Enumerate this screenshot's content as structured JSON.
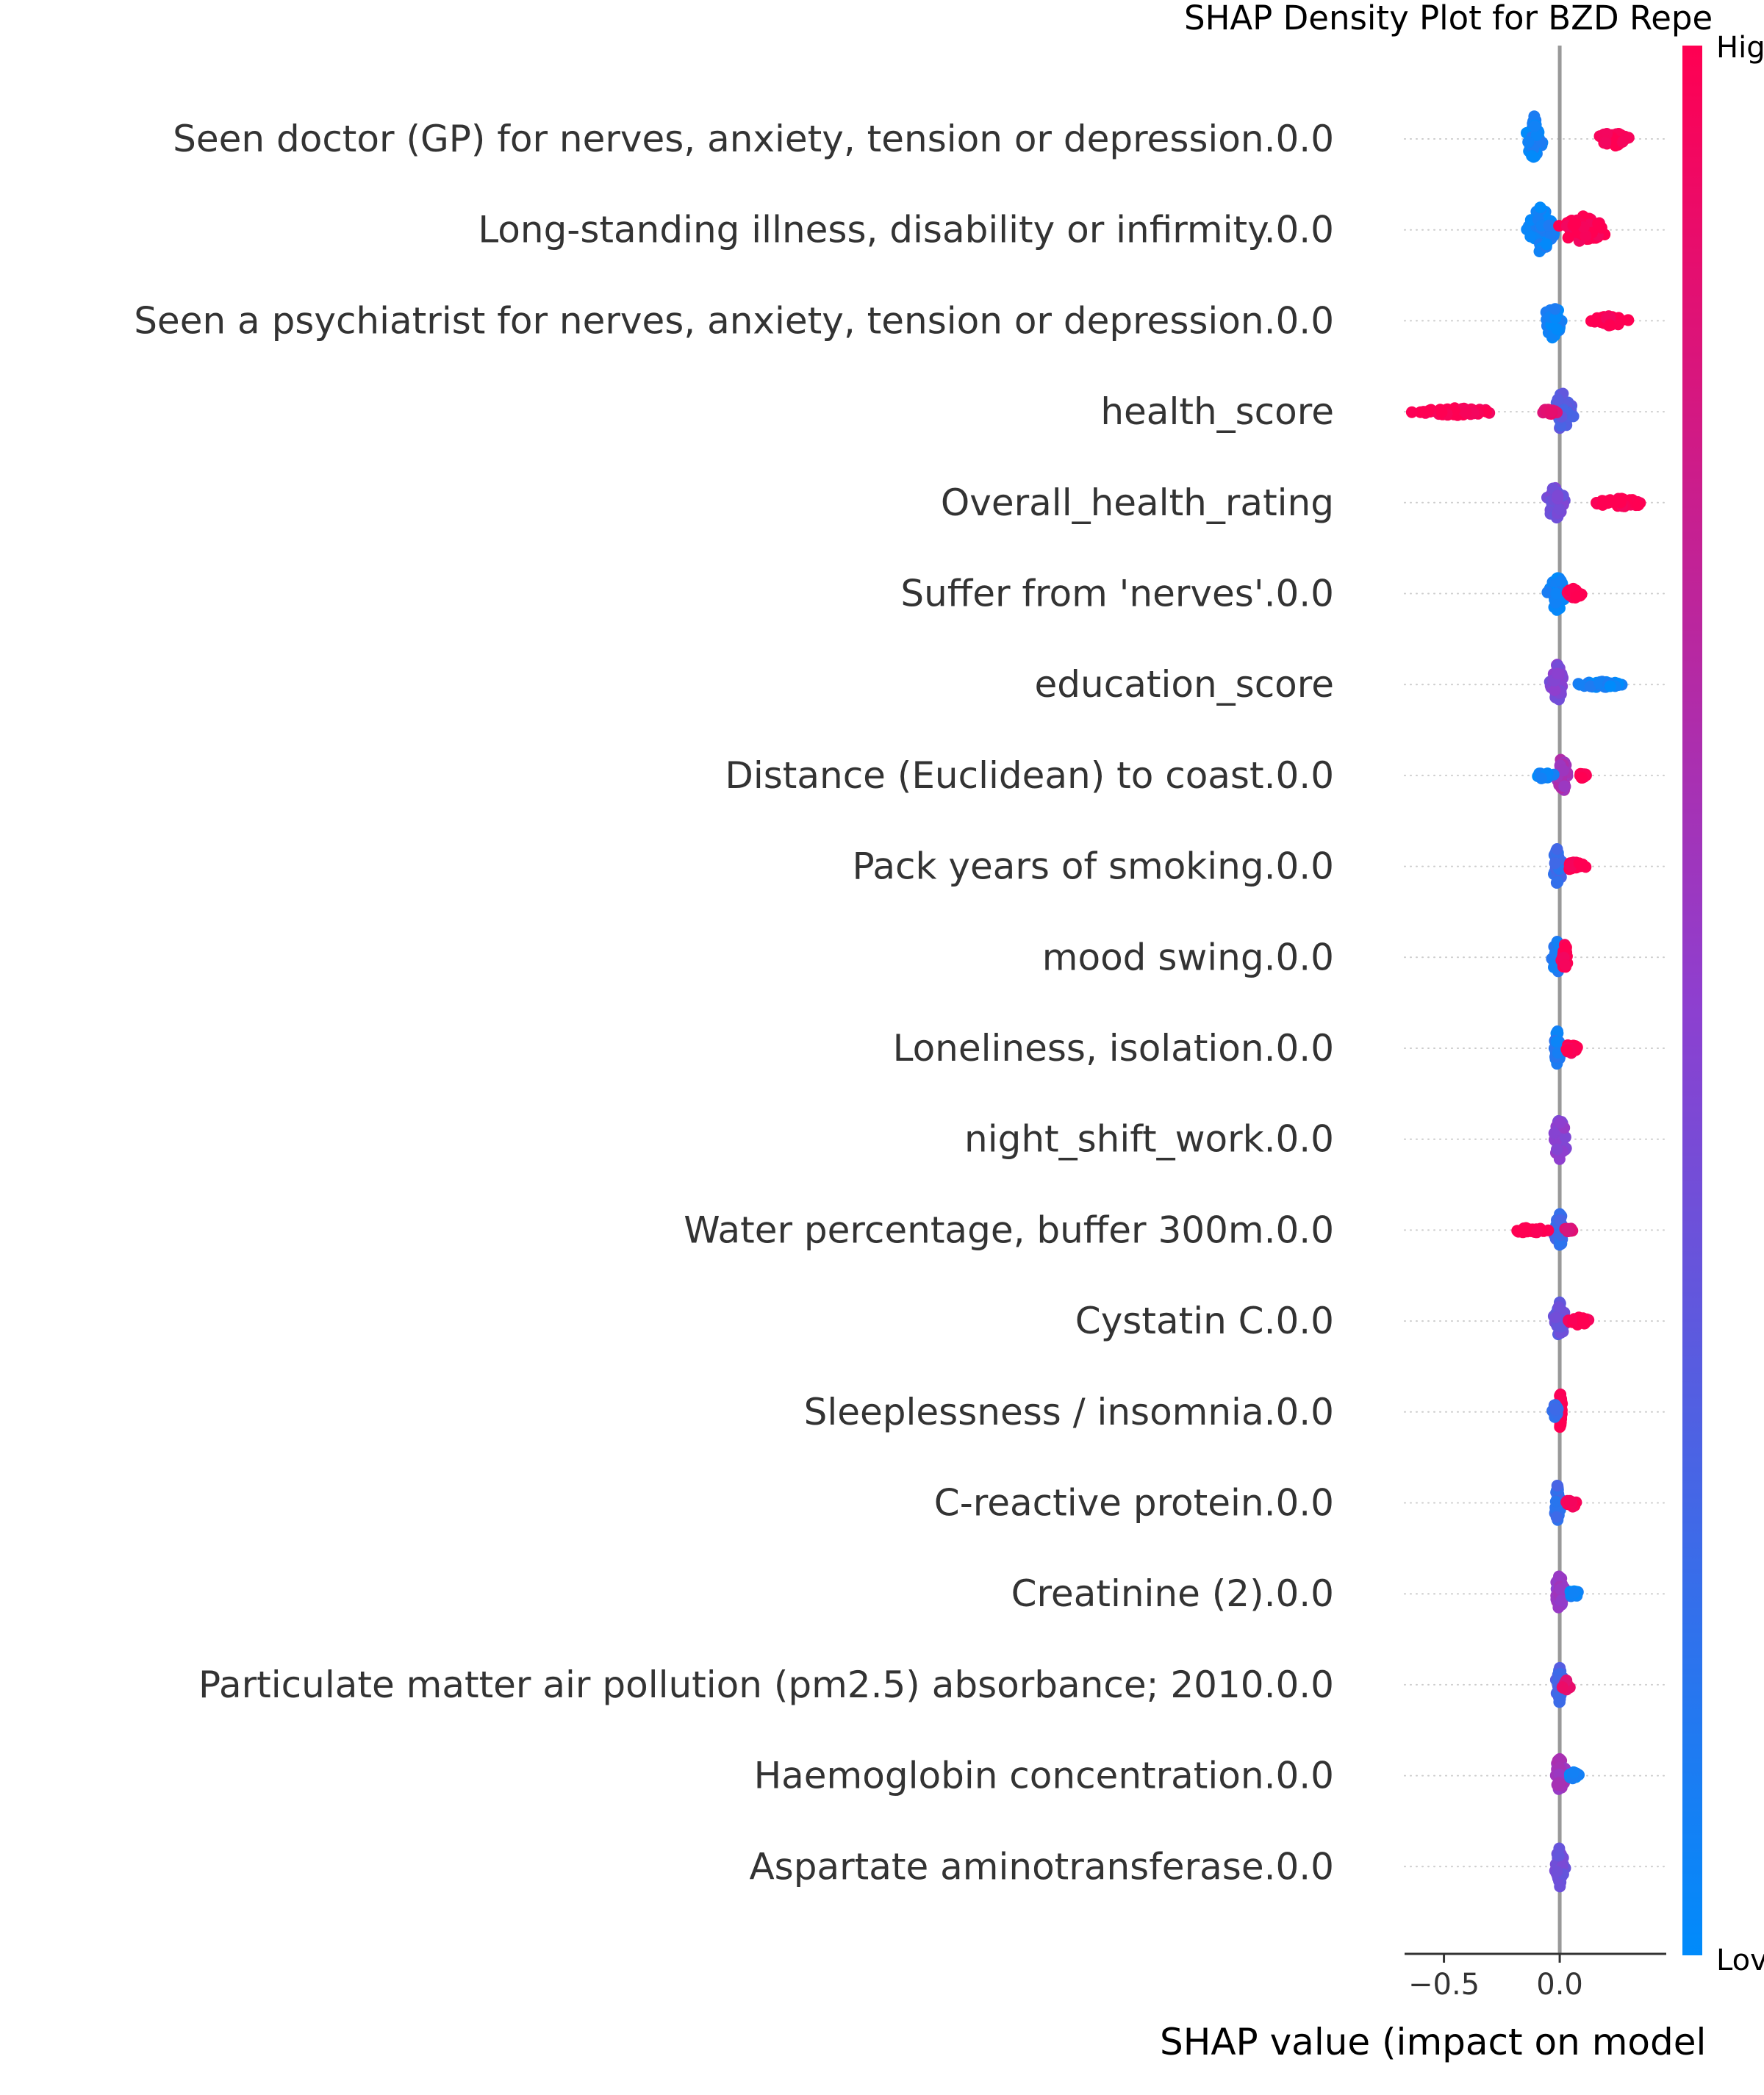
{
  "chart_data": {
    "type": "scatter",
    "subtype": "shap-beeswarm",
    "title": "SHAP Density Plot for BZD Repe",
    "xlabel": "SHAP value (impact on model",
    "xlim": [
      -0.67,
      0.46
    ],
    "xticks": [
      {
        "value": -0.5,
        "label": "−0.5"
      },
      {
        "value": 0.0,
        "label": "0.0"
      }
    ],
    "colorbar": {
      "high_label": "Hig",
      "low_label": "Lov",
      "low_color": "#008bfb",
      "high_color": "#ff0052"
    },
    "grid": false,
    "features": [
      {
        "name": "Seen doctor (GP) for nerves, anxiety, tension or depression.0.0",
        "clusters": [
          {
            "center": -0.11,
            "spread": 0.04,
            "height": 62,
            "color": 0.05
          },
          {
            "center": 0.23,
            "spread": 0.08,
            "height": 22,
            "color": 1.0
          }
        ]
      },
      {
        "name": "Long-standing illness, disability or infirmity.0.0",
        "clusters": [
          {
            "center": -0.08,
            "spread": 0.08,
            "height": 64,
            "color": 0.05
          },
          {
            "center": 0.1,
            "spread": 0.12,
            "height": 38,
            "color": 1.0
          }
        ]
      },
      {
        "name": "Seen a psychiatrist for nerves, anxiety, tension or depression.0.0",
        "clusters": [
          {
            "center": -0.03,
            "spread": 0.05,
            "height": 48,
            "color": 0.05
          },
          {
            "center": 0.22,
            "spread": 0.1,
            "height": 14,
            "color": 1.0
          }
        ]
      },
      {
        "name": "health_score",
        "clusters": [
          {
            "center": 0.01,
            "spread": 0.06,
            "height": 56,
            "color": 0.3
          },
          {
            "center": -0.45,
            "spread": 0.22,
            "height": 10,
            "color": 1.0
          },
          {
            "center": -0.05,
            "spread": 0.06,
            "height": 8,
            "color": 0.9
          }
        ]
      },
      {
        "name": "Overall_health_rating",
        "clusters": [
          {
            "center": -0.02,
            "spread": 0.05,
            "height": 48,
            "color": 0.4
          },
          {
            "center": 0.26,
            "spread": 0.15,
            "height": 12,
            "color": 1.0
          }
        ]
      },
      {
        "name": "Suffer from 'nerves'.0.0",
        "clusters": [
          {
            "center": -0.01,
            "spread": 0.05,
            "height": 48,
            "color": 0.05
          },
          {
            "center": 0.06,
            "spread": 0.04,
            "height": 14,
            "color": 1.0
          }
        ]
      },
      {
        "name": "education_score",
        "clusters": [
          {
            "center": -0.01,
            "spread": 0.04,
            "height": 56,
            "color": 0.45
          },
          {
            "center": 0.18,
            "spread": 0.13,
            "height": 8,
            "color": 0.05
          }
        ]
      },
      {
        "name": "Distance (Euclidean) to coast.0.0",
        "clusters": [
          {
            "center": 0.01,
            "spread": 0.03,
            "height": 52,
            "color": 0.6
          },
          {
            "center": -0.07,
            "spread": 0.05,
            "height": 10,
            "color": 0.05
          },
          {
            "center": 0.1,
            "spread": 0.02,
            "height": 8,
            "color": 1.0
          }
        ]
      },
      {
        "name": "Pack years of smoking.0.0",
        "clusters": [
          {
            "center": -0.01,
            "spread": 0.03,
            "height": 50,
            "color": 0.2
          },
          {
            "center": 0.07,
            "spread": 0.06,
            "height": 14,
            "color": 1.0
          }
        ]
      },
      {
        "name": "mood swing.0.0",
        "clusters": [
          {
            "center": -0.01,
            "spread": 0.03,
            "height": 48,
            "color": 0.1
          },
          {
            "center": 0.02,
            "spread": 0.02,
            "height": 40,
            "color": 1.0
          }
        ]
      },
      {
        "name": "Loneliness, isolation.0.0",
        "clusters": [
          {
            "center": -0.01,
            "spread": 0.02,
            "height": 50,
            "color": 0.1
          },
          {
            "center": 0.05,
            "spread": 0.04,
            "height": 14,
            "color": 1.0
          }
        ]
      },
      {
        "name": "night_shift_work.0.0",
        "clusters": [
          {
            "center": 0.0,
            "spread": 0.04,
            "height": 56,
            "color": 0.5
          }
        ]
      },
      {
        "name": "Water percentage, buffer 300m.0.0",
        "clusters": [
          {
            "center": 0.0,
            "spread": 0.03,
            "height": 50,
            "color": 0.2
          },
          {
            "center": -0.13,
            "spread": 0.1,
            "height": 8,
            "color": 1.0
          },
          {
            "center": 0.04,
            "spread": 0.03,
            "height": 8,
            "color": 0.85
          }
        ]
      },
      {
        "name": "Cystatin C.0.0",
        "clusters": [
          {
            "center": 0.0,
            "spread": 0.03,
            "height": 52,
            "color": 0.35
          },
          {
            "center": 0.08,
            "spread": 0.06,
            "height": 12,
            "color": 1.0
          }
        ]
      },
      {
        "name": "Sleeplessness / insomnia.0.0",
        "clusters": [
          {
            "center": 0.003,
            "spread": 0.01,
            "height": 58,
            "color": 1.0
          },
          {
            "center": -0.02,
            "spread": 0.02,
            "height": 22,
            "color": 0.2
          }
        ]
      },
      {
        "name": "C-reactive protein.0.0",
        "clusters": [
          {
            "center": -0.01,
            "spread": 0.02,
            "height": 50,
            "color": 0.2
          },
          {
            "center": 0.05,
            "spread": 0.04,
            "height": 12,
            "color": 1.0
          }
        ]
      },
      {
        "name": "Creatinine (2).0.0",
        "clusters": [
          {
            "center": 0.0,
            "spread": 0.03,
            "height": 52,
            "color": 0.55
          },
          {
            "center": 0.06,
            "spread": 0.03,
            "height": 10,
            "color": 0.05
          }
        ]
      },
      {
        "name": "Particulate matter air pollution (pm2.5) absorbance; 2010.0.0",
        "clusters": [
          {
            "center": 0.0,
            "spread": 0.02,
            "height": 52,
            "color": 0.25
          },
          {
            "center": 0.03,
            "spread": 0.03,
            "height": 14,
            "color": 0.9
          }
        ]
      },
      {
        "name": "Haemoglobin concentration.0.0",
        "clusters": [
          {
            "center": 0.0,
            "spread": 0.03,
            "height": 52,
            "color": 0.6
          },
          {
            "center": 0.06,
            "spread": 0.03,
            "height": 10,
            "color": 0.05
          }
        ]
      },
      {
        "name": "Aspartate aminotransferase.0.0",
        "clusters": [
          {
            "center": 0.0,
            "spread": 0.03,
            "height": 56,
            "color": 0.4
          }
        ]
      }
    ]
  }
}
